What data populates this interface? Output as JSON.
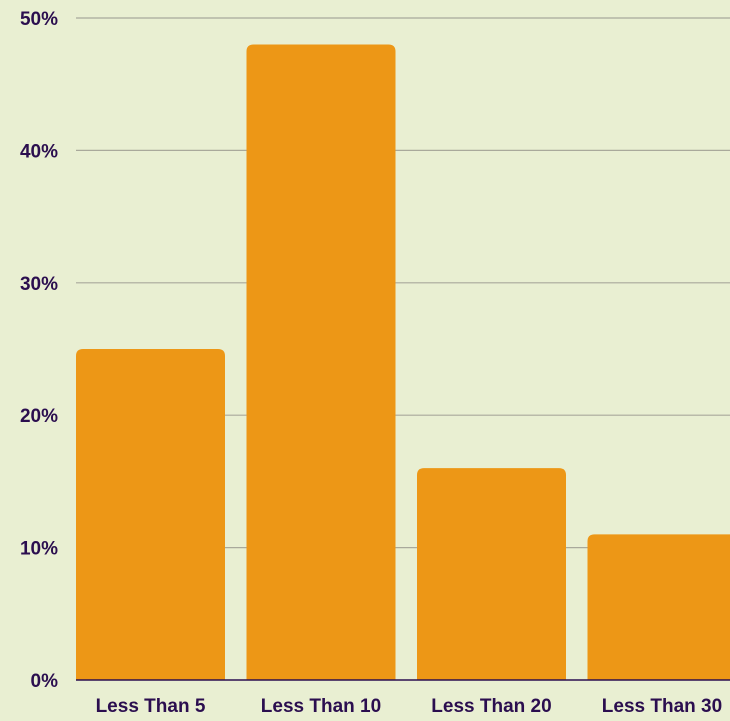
{
  "colors": {
    "background": "#e9efd2",
    "bar": "#ed9716",
    "grid": "#a9a99b",
    "text": "#2b0e4f"
  },
  "chart_data": {
    "type": "bar",
    "title": "",
    "xlabel": "",
    "ylabel": "",
    "categories": [
      "Less Than 5",
      "Less Than 10",
      "Less Than 20",
      "Less Than 30"
    ],
    "values": [
      25,
      48,
      16,
      11
    ],
    "ylim": [
      0,
      50
    ],
    "yticks": [
      0,
      10,
      20,
      30,
      40,
      50
    ],
    "ytick_labels": [
      "0%",
      "10%",
      "20%",
      "30%",
      "40%",
      "50%"
    ],
    "grid": true,
    "legend": "none"
  }
}
